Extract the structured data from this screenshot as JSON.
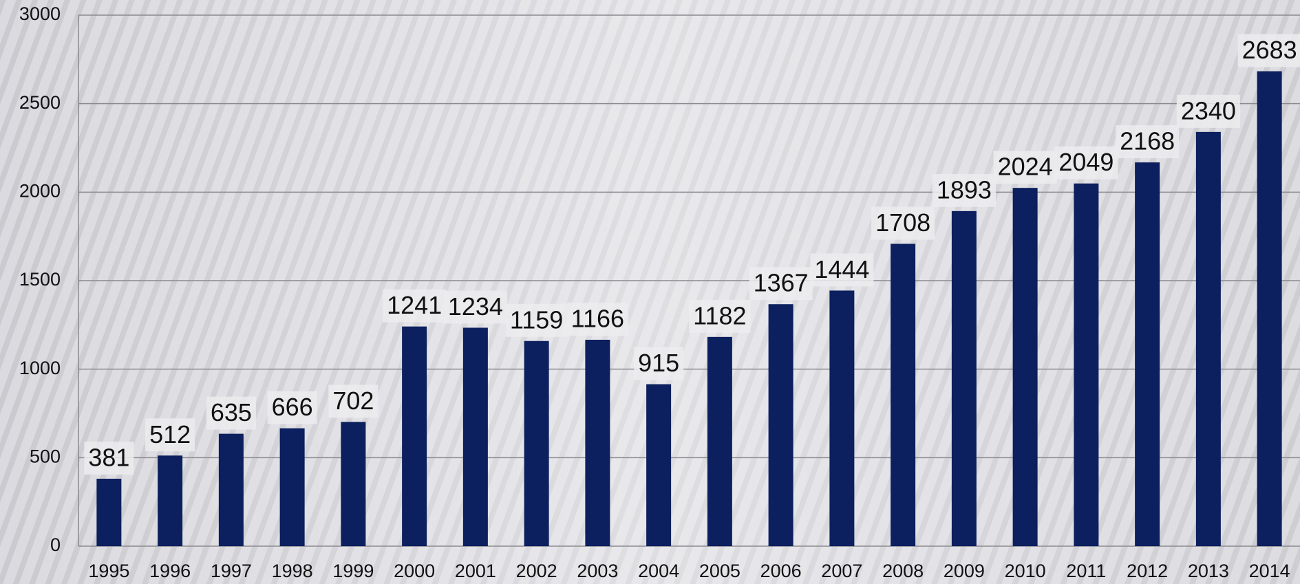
{
  "chart_data": {
    "type": "bar",
    "categories": [
      "1995",
      "1996",
      "1997",
      "1998",
      "1999",
      "2000",
      "2001",
      "2002",
      "2003",
      "2004",
      "2005",
      "2006",
      "2007",
      "2008",
      "2009",
      "2010",
      "2011",
      "2012",
      "2013",
      "2014"
    ],
    "values": [
      381,
      512,
      635,
      666,
      702,
      1241,
      1234,
      1159,
      1166,
      915,
      1182,
      1367,
      1444,
      1708,
      1893,
      2024,
      2049,
      2168,
      2340,
      2683
    ],
    "color": "#0c1f5e",
    "ylim": [
      0,
      3000
    ],
    "yticks": [
      0,
      500,
      1000,
      1500,
      2000,
      2500,
      3000
    ],
    "grid": true
  }
}
